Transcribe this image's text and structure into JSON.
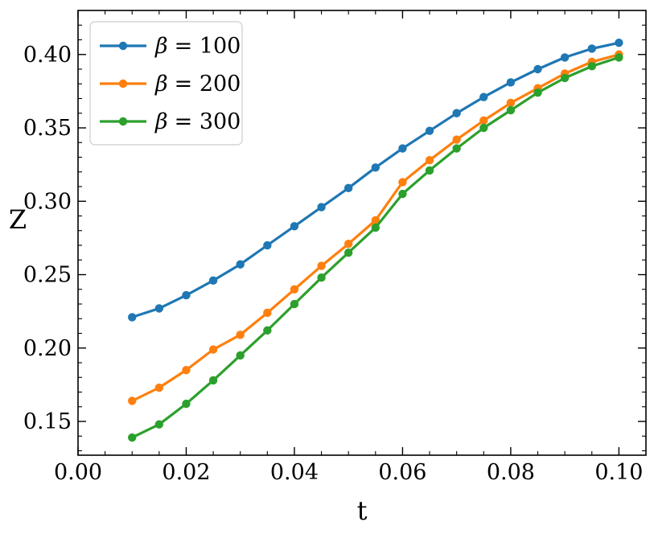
{
  "chart_data": {
    "type": "line",
    "title": "",
    "xlabel": "t",
    "ylabel": "Z",
    "xlim": [
      0.0,
      0.105
    ],
    "ylim": [
      0.127,
      0.43
    ],
    "xticks": [
      0.0,
      0.02,
      0.04,
      0.06,
      0.08,
      0.1
    ],
    "xtick_labels": [
      "0.00",
      "0.02",
      "0.04",
      "0.06",
      "0.08",
      "0.10"
    ],
    "yticks": [
      0.15,
      0.2,
      0.25,
      0.3,
      0.35,
      0.4
    ],
    "ytick_labels": [
      "0.15",
      "0.20",
      "0.25",
      "0.30",
      "0.35",
      "0.40"
    ],
    "grid": false,
    "legend_position": "top-left",
    "x": [
      0.01,
      0.015,
      0.02,
      0.025,
      0.03,
      0.035,
      0.04,
      0.045,
      0.05,
      0.055,
      0.06,
      0.065,
      0.07,
      0.075,
      0.08,
      0.085,
      0.09,
      0.095,
      0.1
    ],
    "series": [
      {
        "name": "β = 100",
        "legend_symbol": "β",
        "legend_value": "= 100",
        "color": "#1f77b4",
        "values": [
          0.221,
          0.227,
          0.236,
          0.246,
          0.257,
          0.27,
          0.283,
          0.296,
          0.309,
          0.323,
          0.336,
          0.348,
          0.36,
          0.371,
          0.381,
          0.39,
          0.398,
          0.404,
          0.408
        ]
      },
      {
        "name": "β = 200",
        "legend_symbol": "β",
        "legend_value": "= 200",
        "color": "#ff7f0e",
        "values": [
          0.164,
          0.173,
          0.185,
          0.199,
          0.209,
          0.224,
          0.24,
          0.256,
          0.271,
          0.287,
          0.313,
          0.328,
          0.342,
          0.355,
          0.367,
          0.377,
          0.387,
          0.395,
          0.4
        ]
      },
      {
        "name": "β = 300",
        "legend_symbol": "β",
        "legend_value": "= 300",
        "color": "#2ca02c",
        "values": [
          0.139,
          0.148,
          0.162,
          0.178,
          0.195,
          0.212,
          0.23,
          0.248,
          0.265,
          0.282,
          0.305,
          0.321,
          0.336,
          0.35,
          0.362,
          0.374,
          0.384,
          0.392,
          0.398
        ]
      }
    ]
  }
}
